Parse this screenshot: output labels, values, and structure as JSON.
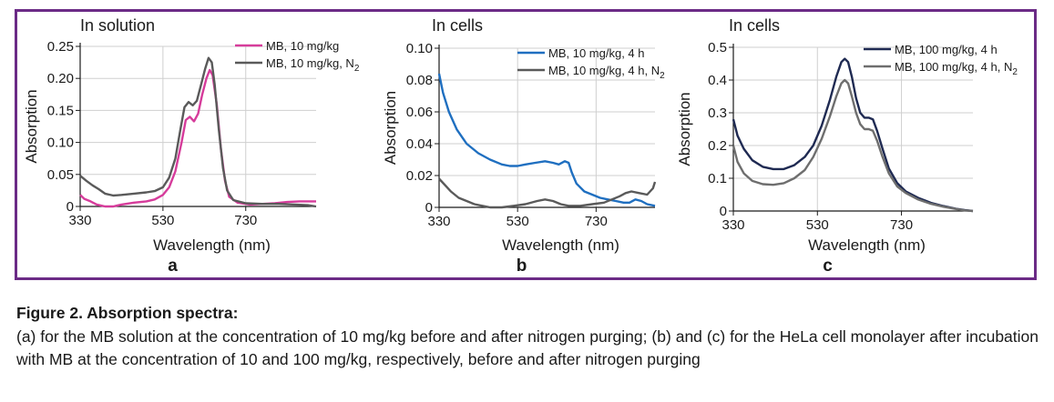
{
  "chart_data": [
    {
      "type": "line",
      "title": "In solution",
      "panel_label": "a",
      "xlabel": "Wavelength (nm)",
      "ylabel": "Absorption",
      "xlim": [
        330,
        900
      ],
      "ylim": [
        0,
        0.25
      ],
      "xticks": [
        330,
        530,
        730
      ],
      "yticks": [
        0,
        0.05,
        0.1,
        0.15,
        0.2,
        0.25
      ],
      "ytick_labels": [
        "0",
        "0.05",
        "0.10",
        "0.15",
        "0.20",
        "0.25"
      ],
      "grid": true,
      "legend_position": "top-right",
      "series": [
        {
          "name": "MB, 10 mg/kg",
          "name_sub": "",
          "color": "#d63c9b",
          "points": [
            [
              330,
              0.018
            ],
            [
              340,
              0.012
            ],
            [
              355,
              0.008
            ],
            [
              370,
              0.003
            ],
            [
              390,
              0.0
            ],
            [
              410,
              0.0
            ],
            [
              430,
              0.003
            ],
            [
              460,
              0.006
            ],
            [
              490,
              0.008
            ],
            [
              510,
              0.011
            ],
            [
              530,
              0.018
            ],
            [
              545,
              0.03
            ],
            [
              560,
              0.055
            ],
            [
              575,
              0.1
            ],
            [
              585,
              0.135
            ],
            [
              595,
              0.14
            ],
            [
              605,
              0.133
            ],
            [
              615,
              0.145
            ],
            [
              625,
              0.175
            ],
            [
              635,
              0.2
            ],
            [
              643,
              0.213
            ],
            [
              650,
              0.205
            ],
            [
              660,
              0.16
            ],
            [
              670,
              0.09
            ],
            [
              680,
              0.04
            ],
            [
              690,
              0.015
            ],
            [
              710,
              0.006
            ],
            [
              740,
              0.003
            ],
            [
              770,
              0.004
            ],
            [
              800,
              0.005
            ],
            [
              830,
              0.007
            ],
            [
              860,
              0.008
            ],
            [
              900,
              0.008
            ]
          ]
        },
        {
          "name": "MB, 10 mg/kg, N",
          "name_sub": "2",
          "color": "#5a5a5a",
          "points": [
            [
              330,
              0.048
            ],
            [
              345,
              0.04
            ],
            [
              360,
              0.033
            ],
            [
              375,
              0.027
            ],
            [
              390,
              0.02
            ],
            [
              410,
              0.017
            ],
            [
              430,
              0.018
            ],
            [
              460,
              0.02
            ],
            [
              490,
              0.022
            ],
            [
              510,
              0.024
            ],
            [
              530,
              0.03
            ],
            [
              545,
              0.045
            ],
            [
              560,
              0.075
            ],
            [
              572,
              0.12
            ],
            [
              582,
              0.155
            ],
            [
              592,
              0.163
            ],
            [
              602,
              0.158
            ],
            [
              612,
              0.165
            ],
            [
              622,
              0.19
            ],
            [
              632,
              0.215
            ],
            [
              640,
              0.232
            ],
            [
              648,
              0.225
            ],
            [
              655,
              0.19
            ],
            [
              665,
              0.12
            ],
            [
              675,
              0.06
            ],
            [
              685,
              0.025
            ],
            [
              700,
              0.01
            ],
            [
              730,
              0.005
            ],
            [
              770,
              0.004
            ],
            [
              810,
              0.004
            ],
            [
              850,
              0.003
            ],
            [
              880,
              0.002
            ],
            [
              900,
              0.0
            ]
          ]
        }
      ]
    },
    {
      "type": "line",
      "title": "In cells",
      "panel_label": "b",
      "xlabel": "Wavelength (nm)",
      "ylabel": "Absorption",
      "xlim": [
        330,
        880
      ],
      "ylim": [
        0,
        0.1
      ],
      "xticks": [
        330,
        530,
        730
      ],
      "yticks": [
        0,
        0.02,
        0.04,
        0.06,
        0.08,
        0.1
      ],
      "ytick_labels": [
        "0",
        "0.02",
        "0.04",
        "0.06",
        "0.08",
        "0.10"
      ],
      "grid": true,
      "legend_position": "top-right",
      "series": [
        {
          "name": "MB, 10 mg/kg, 4 h",
          "name_sub": "",
          "color": "#1f6fc0",
          "points": [
            [
              330,
              0.084
            ],
            [
              340,
              0.072
            ],
            [
              355,
              0.06
            ],
            [
              375,
              0.049
            ],
            [
              400,
              0.04
            ],
            [
              430,
              0.034
            ],
            [
              460,
              0.03
            ],
            [
              490,
              0.027
            ],
            [
              510,
              0.026
            ],
            [
              530,
              0.026
            ],
            [
              550,
              0.027
            ],
            [
              575,
              0.028
            ],
            [
              600,
              0.029
            ],
            [
              620,
              0.028
            ],
            [
              635,
              0.027
            ],
            [
              650,
              0.029
            ],
            [
              660,
              0.028
            ],
            [
              668,
              0.022
            ],
            [
              680,
              0.015
            ],
            [
              700,
              0.01
            ],
            [
              720,
              0.008
            ],
            [
              740,
              0.006
            ],
            [
              760,
              0.005
            ],
            [
              780,
              0.004
            ],
            [
              800,
              0.003
            ],
            [
              815,
              0.003
            ],
            [
              830,
              0.005
            ],
            [
              845,
              0.004
            ],
            [
              860,
              0.002
            ],
            [
              880,
              0.001
            ]
          ]
        },
        {
          "name": "MB, 10 mg/kg, 4 h, N",
          "name_sub": "2",
          "color": "#5a5a5a",
          "points": [
            [
              330,
              0.018
            ],
            [
              345,
              0.014
            ],
            [
              360,
              0.01
            ],
            [
              380,
              0.006
            ],
            [
              400,
              0.004
            ],
            [
              420,
              0.002
            ],
            [
              440,
              0.001
            ],
            [
              460,
              0.0
            ],
            [
              490,
              0.0
            ],
            [
              520,
              0.001
            ],
            [
              550,
              0.002
            ],
            [
              580,
              0.004
            ],
            [
              600,
              0.005
            ],
            [
              620,
              0.004
            ],
            [
              640,
              0.002
            ],
            [
              660,
              0.001
            ],
            [
              690,
              0.001
            ],
            [
              720,
              0.002
            ],
            [
              750,
              0.003
            ],
            [
              770,
              0.005
            ],
            [
              790,
              0.007
            ],
            [
              805,
              0.009
            ],
            [
              820,
              0.01
            ],
            [
              840,
              0.009
            ],
            [
              860,
              0.008
            ],
            [
              875,
              0.012
            ],
            [
              880,
              0.016
            ]
          ]
        }
      ]
    },
    {
      "type": "line",
      "title": "In cells",
      "panel_label": "c",
      "xlabel": "Wavelength (nm)",
      "ylabel": "Absorption",
      "xlim": [
        330,
        900
      ],
      "ylim": [
        0,
        0.5
      ],
      "xticks": [
        330,
        530,
        730
      ],
      "yticks": [
        0,
        0.1,
        0.2,
        0.3,
        0.4,
        0.5
      ],
      "ytick_labels": [
        "0",
        "0.1",
        "0.2",
        "0.3",
        "0.4",
        "0.5"
      ],
      "grid": true,
      "legend_position": "top-right",
      "series": [
        {
          "name": "MB, 100 mg/kg, 4 h",
          "name_sub": "",
          "color": "#1f2a52",
          "points": [
            [
              330,
              0.28
            ],
            [
              340,
              0.23
            ],
            [
              355,
              0.19
            ],
            [
              375,
              0.155
            ],
            [
              400,
              0.135
            ],
            [
              425,
              0.128
            ],
            [
              450,
              0.128
            ],
            [
              475,
              0.14
            ],
            [
              500,
              0.165
            ],
            [
              520,
              0.2
            ],
            [
              540,
              0.26
            ],
            [
              560,
              0.34
            ],
            [
              575,
              0.41
            ],
            [
              587,
              0.455
            ],
            [
              595,
              0.465
            ],
            [
              603,
              0.455
            ],
            [
              612,
              0.41
            ],
            [
              622,
              0.345
            ],
            [
              632,
              0.3
            ],
            [
              642,
              0.285
            ],
            [
              652,
              0.285
            ],
            [
              662,
              0.28
            ],
            [
              672,
              0.245
            ],
            [
              685,
              0.19
            ],
            [
              700,
              0.13
            ],
            [
              720,
              0.085
            ],
            [
              740,
              0.06
            ],
            [
              770,
              0.04
            ],
            [
              800,
              0.025
            ],
            [
              830,
              0.015
            ],
            [
              860,
              0.007
            ],
            [
              880,
              0.003
            ],
            [
              900,
              0.0
            ]
          ]
        },
        {
          "name": "MB, 100 mg/kg, 4 h, N",
          "name_sub": "2",
          "color": "#6e6e6e",
          "points": [
            [
              330,
              0.2
            ],
            [
              340,
              0.15
            ],
            [
              355,
              0.115
            ],
            [
              375,
              0.092
            ],
            [
              400,
              0.082
            ],
            [
              425,
              0.08
            ],
            [
              450,
              0.085
            ],
            [
              475,
              0.1
            ],
            [
              500,
              0.125
            ],
            [
              520,
              0.165
            ],
            [
              540,
              0.22
            ],
            [
              560,
              0.29
            ],
            [
              575,
              0.35
            ],
            [
              587,
              0.39
            ],
            [
              595,
              0.4
            ],
            [
              603,
              0.39
            ],
            [
              612,
              0.35
            ],
            [
              622,
              0.3
            ],
            [
              632,
              0.265
            ],
            [
              642,
              0.25
            ],
            [
              652,
              0.25
            ],
            [
              662,
              0.245
            ],
            [
              672,
              0.215
            ],
            [
              685,
              0.165
            ],
            [
              700,
              0.115
            ],
            [
              720,
              0.075
            ],
            [
              740,
              0.055
            ],
            [
              770,
              0.035
            ],
            [
              800,
              0.022
            ],
            [
              830,
              0.013
            ],
            [
              860,
              0.006
            ],
            [
              880,
              0.002
            ],
            [
              900,
              0.0
            ]
          ]
        }
      ]
    }
  ],
  "caption": {
    "title": "Figure 2. Absorption spectra:",
    "body": "(a) for the MB solution at the concentration of 10 mg/kg before and after nitrogen purging; (b) and (c) for the HeLa cell monolayer after incubation with MB at the concentration of 10 and 100 mg/kg, respectively, before and after nitrogen purging"
  }
}
